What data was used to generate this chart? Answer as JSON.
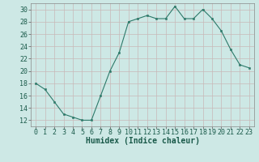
{
  "x": [
    0,
    1,
    2,
    3,
    4,
    5,
    6,
    7,
    8,
    9,
    10,
    11,
    12,
    13,
    14,
    15,
    16,
    17,
    18,
    19,
    20,
    21,
    22,
    23
  ],
  "y": [
    18,
    17,
    15,
    13,
    12.5,
    12,
    12,
    16,
    20,
    23,
    28,
    28.5,
    29,
    28.5,
    28.5,
    30.5,
    28.5,
    28.5,
    30,
    28.5,
    26.5,
    23.5,
    21,
    20.5
  ],
  "line_color": "#2d7a6a",
  "marker_color": "#2d7a6a",
  "bg_color": "#cde8e5",
  "grid_color": "#c8b8b8",
  "xlabel": "Humidex (Indice chaleur)",
  "xlim": [
    -0.5,
    23.5
  ],
  "ylim": [
    11,
    31
  ],
  "yticks": [
    12,
    14,
    16,
    18,
    20,
    22,
    24,
    26,
    28,
    30
  ],
  "xticks": [
    0,
    1,
    2,
    3,
    4,
    5,
    6,
    7,
    8,
    9,
    10,
    11,
    12,
    13,
    14,
    15,
    16,
    17,
    18,
    19,
    20,
    21,
    22,
    23
  ],
  "xlabel_fontsize": 7.0,
  "tick_fontsize": 6.0
}
